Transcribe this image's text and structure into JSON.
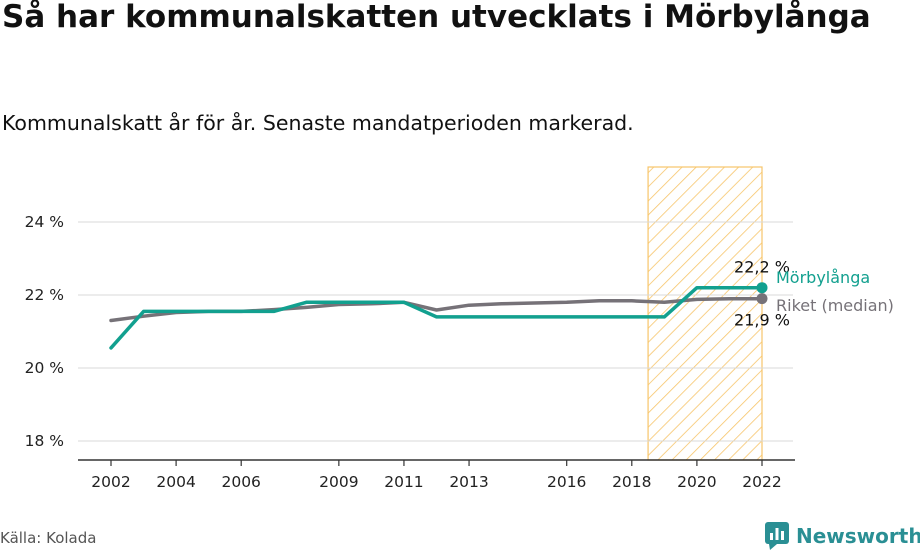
{
  "title": "Så har kommunalskatten utvecklats i Mörbylånga",
  "subtitle": "Kommunalskatt år för år. Senaste mandatperioden markerad.",
  "source": "Källa: Kolada",
  "brand": "Newsworthy",
  "colors": {
    "morbylanga": "#12a08f",
    "riket": "#767278",
    "highlight": "#f7c56a",
    "grid": "#d9d9d9"
  },
  "chart_data": {
    "type": "line",
    "x": [
      2002,
      2003,
      2004,
      2005,
      2006,
      2007,
      2008,
      2009,
      2010,
      2011,
      2012,
      2013,
      2014,
      2015,
      2016,
      2017,
      2018,
      2019,
      2020,
      2021,
      2022
    ],
    "xticks": [
      "2002",
      "2004",
      "2006",
      "2009",
      "2011",
      "2013",
      "2016",
      "2018",
      "2020",
      "2022"
    ],
    "yticks": [
      "18 %",
      "20 %",
      "22 %",
      "24 %"
    ],
    "ylim": [
      17.5,
      25.4
    ],
    "highlight_period": [
      2018.5,
      2022
    ],
    "series": [
      {
        "name": "Riket (median)",
        "values": [
          21.3,
          21.42,
          21.52,
          21.55,
          21.55,
          21.6,
          21.66,
          21.74,
          21.76,
          21.8,
          21.59,
          21.72,
          21.76,
          21.78,
          21.8,
          21.84,
          21.84,
          21.8,
          21.88,
          21.9,
          21.9
        ],
        "end_label": "21,9 %"
      },
      {
        "name": "Mörbylånga",
        "values": [
          20.55,
          21.55,
          21.55,
          21.55,
          21.55,
          21.55,
          21.8,
          21.8,
          21.8,
          21.8,
          21.4,
          21.4,
          21.4,
          21.4,
          21.4,
          21.4,
          21.4,
          21.4,
          22.2,
          22.2,
          22.2
        ],
        "end_label": "22,2 %"
      }
    ]
  }
}
